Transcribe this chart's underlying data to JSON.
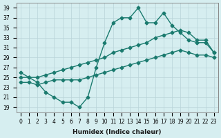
{
  "xlabel": "Humidex (Indice chaleur)",
  "ylabel": "",
  "bg_color": "#d6eef0",
  "line_color": "#1a7a6e",
  "grid_color": "#b8d4d8",
  "xlim": [
    -0.5,
    23.5
  ],
  "ylim": [
    18,
    40
  ],
  "yticks": [
    19,
    21,
    23,
    25,
    27,
    29,
    31,
    33,
    35,
    37,
    39
  ],
  "xticks": [
    0,
    1,
    2,
    3,
    4,
    5,
    6,
    7,
    8,
    9,
    10,
    11,
    12,
    13,
    14,
    15,
    16,
    17,
    18,
    19,
    20,
    21,
    22,
    23
  ],
  "line1_x": [
    0,
    1,
    2,
    3,
    4,
    5,
    6,
    7,
    8,
    9,
    10,
    11,
    12,
    13,
    14,
    15,
    16,
    17,
    18,
    19,
    20,
    21,
    22,
    23
  ],
  "line1_y": [
    26,
    25,
    24,
    22,
    21,
    20,
    20,
    19,
    21,
    27,
    32,
    36,
    37,
    37,
    39,
    36,
    36,
    38,
    35.5,
    34,
    32.5,
    32,
    32,
    30
  ],
  "line2_x": [
    0,
    1,
    2,
    3,
    4,
    5,
    6,
    7,
    8,
    9,
    10,
    11,
    12,
    13,
    14,
    15,
    16,
    17,
    18,
    19,
    20,
    21,
    22,
    23
  ],
  "line2_y": [
    25,
    25,
    25,
    25.5,
    26,
    26.5,
    27,
    27.5,
    28,
    28.5,
    29,
    30,
    30.5,
    31,
    31.5,
    32,
    33,
    33.5,
    34,
    34.5,
    34,
    32.5,
    32.5,
    30
  ],
  "line3_x": [
    0,
    1,
    2,
    3,
    4,
    5,
    6,
    7,
    8,
    9,
    10,
    11,
    12,
    13,
    14,
    15,
    16,
    17,
    18,
    19,
    20,
    21,
    22,
    23
  ],
  "line3_y": [
    24,
    24,
    23.5,
    24,
    24.5,
    24.5,
    24.5,
    24.5,
    25,
    25.5,
    26,
    26.5,
    27,
    27.5,
    28,
    28.5,
    29,
    29.5,
    30,
    30.5,
    30,
    29.5,
    29.5,
    29
  ]
}
